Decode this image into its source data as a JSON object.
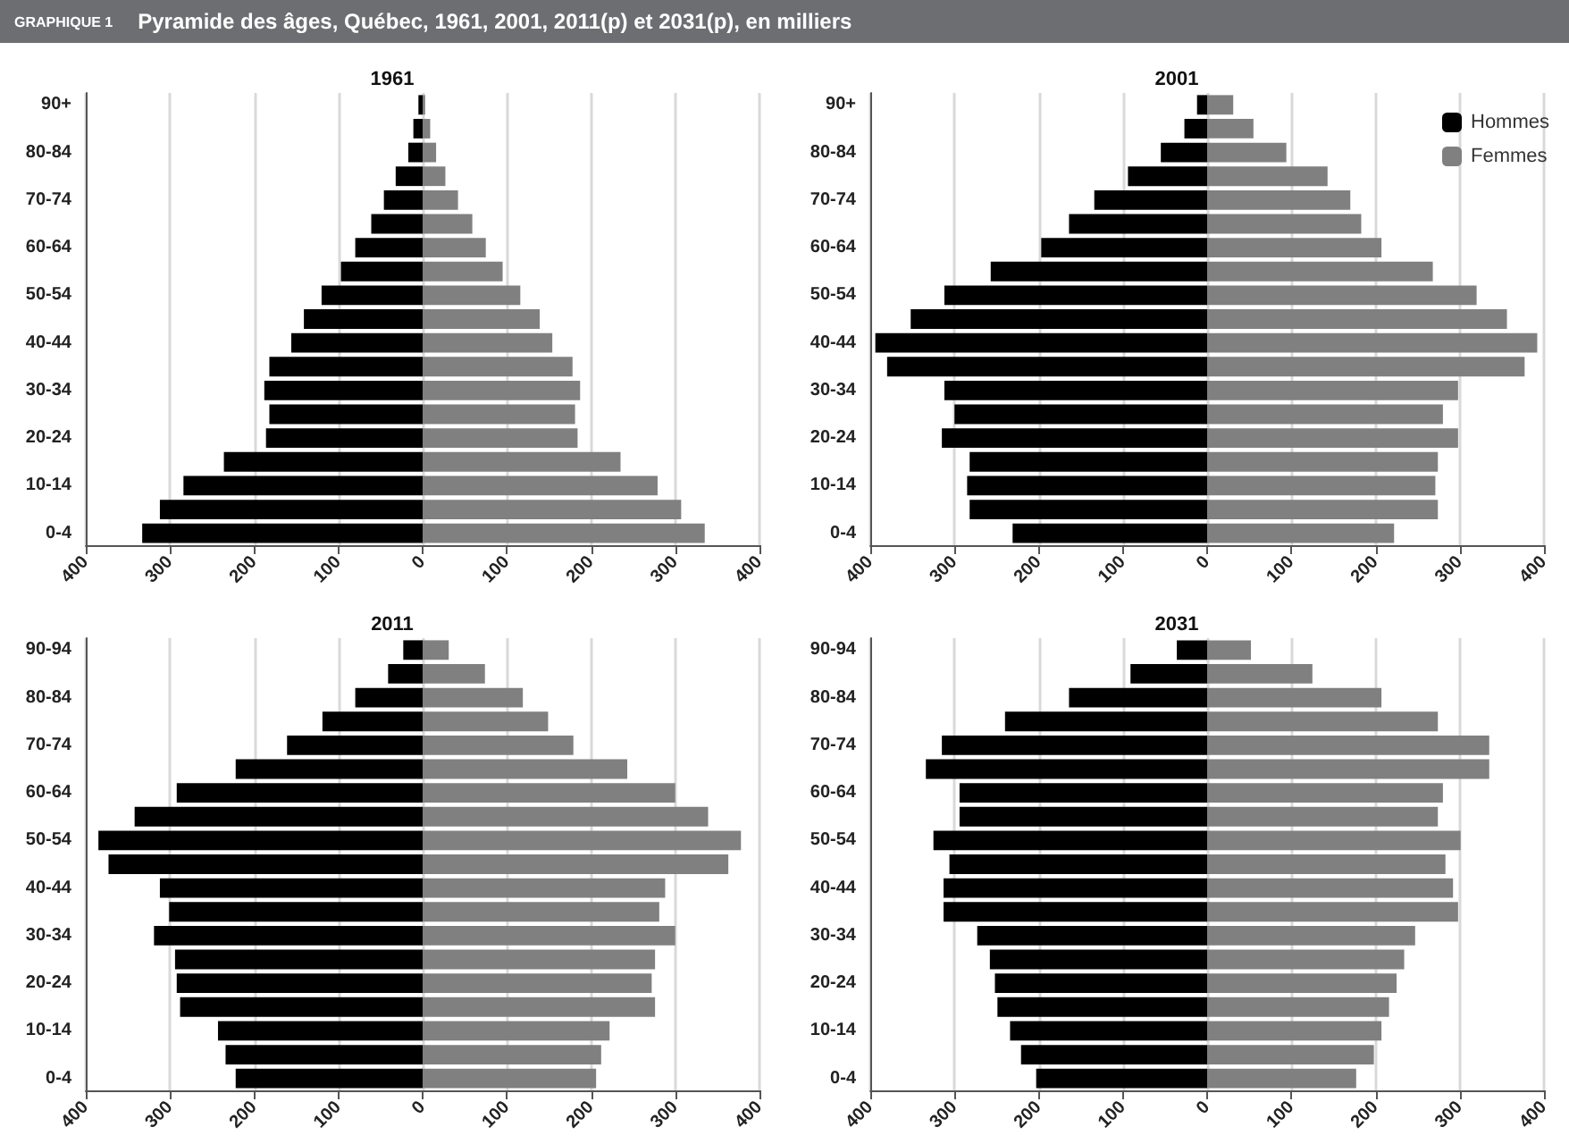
{
  "chart_data": [
    {
      "type": "bar",
      "orientation": "horizontal",
      "stacked": true,
      "annotations": [
        "GRAPHIQUE 1",
        "Pyramide des âges, Québec, 1961, 2001, 2011(p) et 2031(p), en milliers"
      ],
      "title": "1961",
      "categories": [
        "90+",
        null,
        "80-84",
        null,
        "70-74",
        null,
        "60-64",
        null,
        "50-54",
        null,
        "40-44",
        null,
        "30-34",
        null,
        "20-24",
        null,
        "10-14",
        null,
        "0-4"
      ],
      "series": [
        {
          "color": "#000000",
          "values": [
            -5,
            -11,
            -17,
            -32,
            -46,
            -61,
            -80,
            -97,
            -120,
            -141,
            -156,
            -182,
            -188,
            -182,
            -186,
            -236,
            -284,
            -312,
            -333
          ]
        },
        {
          "color": "#808080",
          "values": [
            3,
            9,
            16,
            27,
            42,
            59,
            75,
            95,
            116,
            139,
            154,
            178,
            187,
            181,
            184,
            235,
            279,
            307,
            335
          ]
        }
      ],
      "xlim": [
        -400,
        400
      ],
      "xticks": [
        {
          "value": -400,
          "label": "400"
        },
        {
          "value": -300,
          "label": "300"
        },
        {
          "value": -200,
          "label": "200"
        },
        {
          "value": -100,
          "label": "100"
        },
        0,
        100,
        200,
        300,
        400
      ],
      "grid": "x",
      "legend": false
    },
    {
      "type": "bar",
      "orientation": "horizontal",
      "stacked": true,
      "title": "2001",
      "categories": [
        "90+",
        null,
        "80-84",
        null,
        "70-74",
        null,
        "60-64",
        null,
        "50-54",
        null,
        "40-44",
        null,
        "30-34",
        null,
        "20-24",
        null,
        "10-14",
        null,
        "0-4"
      ],
      "series": [
        {
          "name": "Hommes",
          "color": "#000000",
          "values": [
            -12,
            -27,
            -55,
            -94,
            -134,
            -164,
            -197,
            -257,
            -312,
            -352,
            -394,
            -380,
            -312,
            -300,
            -315,
            -282,
            -285,
            -282,
            -231
          ]
        },
        {
          "name": "Femmes",
          "color": "#808080",
          "values": [
            31,
            55,
            94,
            143,
            170,
            183,
            207,
            268,
            320,
            356,
            392,
            377,
            298,
            280,
            298,
            274,
            271,
            274,
            222
          ]
        }
      ],
      "xlim": [
        -400,
        400
      ],
      "xticks": [
        {
          "value": -400,
          "label": "400"
        },
        {
          "value": -300,
          "label": "300"
        },
        {
          "value": -200,
          "label": "200"
        },
        {
          "value": -100,
          "label": "100"
        },
        0,
        100,
        200,
        300,
        400
      ],
      "grid": "x",
      "legend": "top right"
    },
    {
      "type": "bar",
      "orientation": "horizontal",
      "stacked": true,
      "title": "2011",
      "categories": [
        "90-94",
        null,
        "80-84",
        null,
        "70-74",
        null,
        "60-64",
        null,
        "50-54",
        null,
        "40-44",
        null,
        "30-34",
        null,
        "20-24",
        null,
        "10-14",
        null,
        "0-4"
      ],
      "series": [
        {
          "color": "#000000",
          "values": [
            -23,
            -41,
            -80,
            -119,
            -161,
            -222,
            -292,
            -342,
            -385,
            -373,
            -312,
            -301,
            -319,
            -294,
            -292,
            -288,
            -243,
            -234,
            -222
          ]
        },
        {
          "color": "#808080",
          "values": [
            31,
            74,
            119,
            149,
            179,
            243,
            300,
            339,
            378,
            363,
            288,
            281,
            300,
            276,
            272,
            276,
            222,
            212,
            206
          ]
        }
      ],
      "xlim": [
        -400,
        400
      ],
      "xticks": [
        {
          "value": -400,
          "label": "400"
        },
        {
          "value": -300,
          "label": "300"
        },
        {
          "value": -200,
          "label": "200"
        },
        {
          "value": -100,
          "label": "100"
        },
        0,
        100,
        200,
        300,
        400
      ],
      "grid": "x",
      "legend": false
    },
    {
      "type": "bar",
      "orientation": "horizontal",
      "stacked": true,
      "title": "2031",
      "categories": [
        "90-94",
        null,
        "80-84",
        null,
        "70-74",
        null,
        "60-64",
        null,
        "50-54",
        null,
        "40-44",
        null,
        "30-34",
        null,
        "20-24",
        null,
        "10-14",
        null,
        "0-4"
      ],
      "series": [
        {
          "color": "#000000",
          "values": [
            -36,
            -91,
            -164,
            -240,
            -315,
            -334,
            -294,
            -294,
            -325,
            -306,
            -313,
            -313,
            -273,
            -258,
            -252,
            -249,
            -234,
            -221,
            -203
          ]
        },
        {
          "color": "#808080",
          "values": [
            52,
            125,
            207,
            274,
            335,
            335,
            280,
            274,
            301,
            283,
            292,
            298,
            247,
            234,
            225,
            216,
            207,
            198,
            177
          ]
        }
      ],
      "xlim": [
        -400,
        400
      ],
      "xticks": [
        {
          "value": -400,
          "label": "400"
        },
        {
          "value": -300,
          "label": "300"
        },
        {
          "value": -200,
          "label": "200"
        },
        {
          "value": -100,
          "label": "100"
        },
        0,
        100,
        200,
        300,
        400
      ],
      "grid": "x",
      "legend": false
    }
  ]
}
